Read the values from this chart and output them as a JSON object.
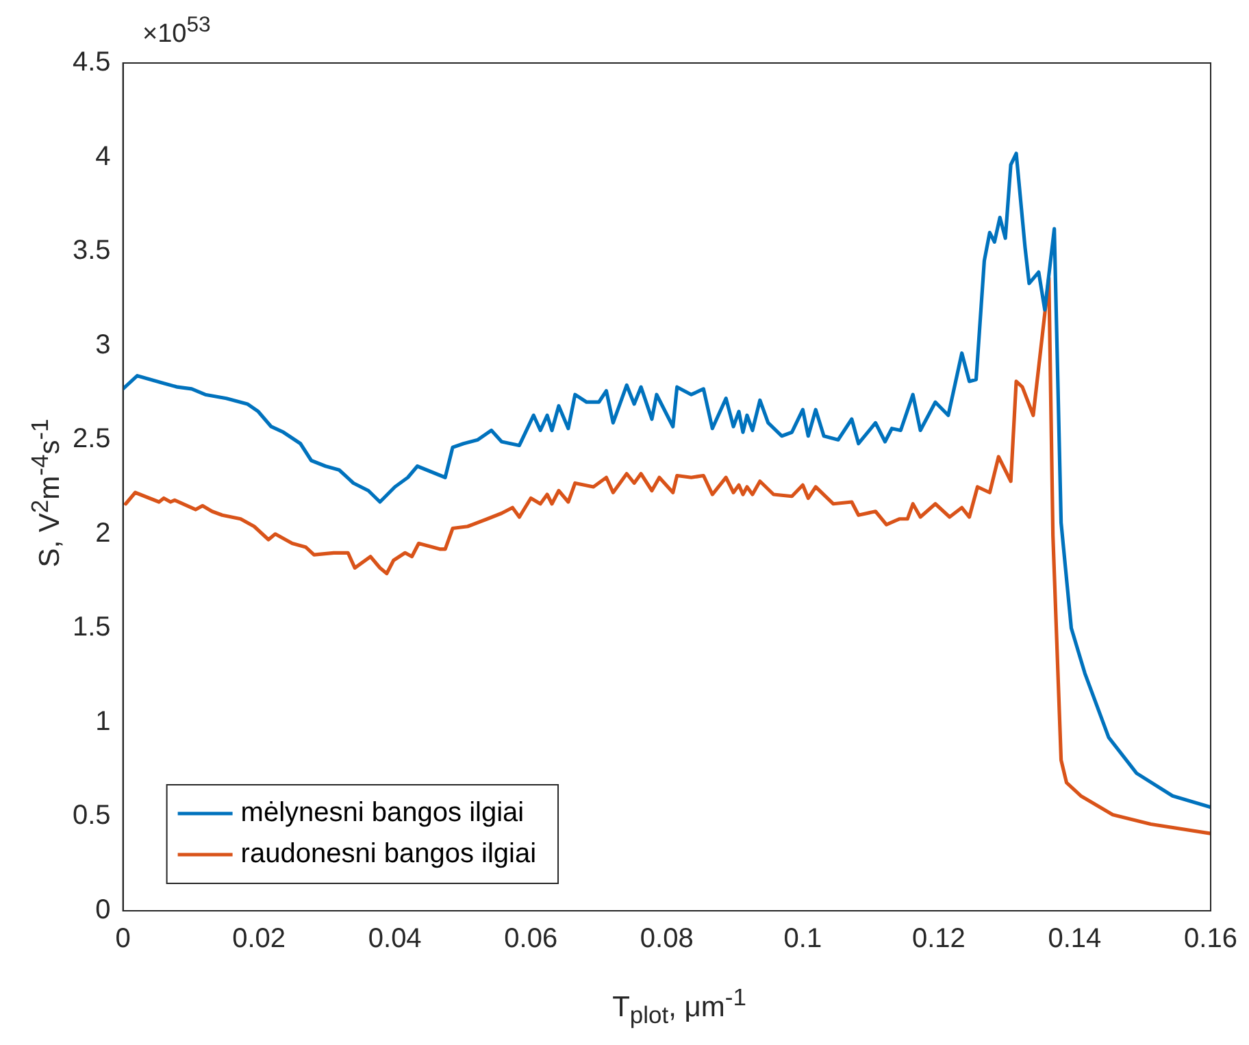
{
  "chart_data": {
    "type": "line",
    "xlabel": "T$_{plot}$, μm$^{-1}$",
    "ylabel": "S, V$^{2}$m$^{-4}$s$^{-1}$",
    "annotations": [
      "×10$^{53}$"
    ],
    "xlim": [
      0,
      0.16
    ],
    "xticks": [
      0,
      0.02,
      0.04,
      0.06,
      0.08,
      0.1,
      0.12,
      0.14,
      0.16
    ],
    "ylim": [
      0,
      4.5
    ],
    "yticks": [
      0,
      0.5,
      1,
      1.5,
      2,
      2.5,
      3,
      3.5,
      4,
      4.5
    ],
    "grid": false,
    "legend": "bottom left",
    "marker": "none",
    "line_style": "solid",
    "series": [
      {
        "name": "mėlynesni bangos ilgiai",
        "color": "#0072bd",
        "x": [
          0,
          0.0021,
          0.006,
          0.008,
          0.0101,
          0.0121,
          0.0152,
          0.0183,
          0.0199,
          0.0218,
          0.0236,
          0.0261,
          0.0277,
          0.0298,
          0.0318,
          0.0339,
          0.0361,
          0.0378,
          0.04,
          0.0419,
          0.0433,
          0.0474,
          0.0485,
          0.0501,
          0.0522,
          0.0542,
          0.0557,
          0.0583,
          0.0604,
          0.0614,
          0.0624,
          0.0631,
          0.0641,
          0.0655,
          0.0665,
          0.0682,
          0.07,
          0.0711,
          0.0721,
          0.0741,
          0.0752,
          0.0762,
          0.0778,
          0.0785,
          0.0809,
          0.0815,
          0.0836,
          0.0854,
          0.0867,
          0.0887,
          0.0898,
          0.0906,
          0.0912,
          0.0918,
          0.0926,
          0.0937,
          0.0949,
          0.0969,
          0.0984,
          0.1,
          0.1008,
          0.1019,
          0.1031,
          0.1052,
          0.1072,
          0.1082,
          0.1107,
          0.1121,
          0.1131,
          0.1144,
          0.1162,
          0.1173,
          0.1195,
          0.1214,
          0.1234,
          0.1245,
          0.1255,
          0.1267,
          0.1275,
          0.1282,
          0.129,
          0.1298,
          0.1306,
          0.1314,
          0.1327,
          0.1333,
          0.1347,
          0.1356,
          0.137,
          0.138,
          0.1395,
          0.1415,
          0.145,
          0.1491,
          0.1544,
          0.16
        ],
        "values": [
          2.77,
          2.84,
          2.8,
          2.78,
          2.77,
          2.74,
          2.72,
          2.69,
          2.65,
          2.57,
          2.54,
          2.48,
          2.39,
          2.36,
          2.34,
          2.27,
          2.23,
          2.17,
          2.25,
          2.3,
          2.36,
          2.3,
          2.46,
          2.48,
          2.5,
          2.55,
          2.49,
          2.47,
          2.63,
          2.55,
          2.63,
          2.55,
          2.68,
          2.56,
          2.74,
          2.7,
          2.7,
          2.76,
          2.59,
          2.79,
          2.69,
          2.78,
          2.61,
          2.74,
          2.57,
          2.78,
          2.74,
          2.77,
          2.56,
          2.72,
          2.57,
          2.65,
          2.54,
          2.63,
          2.55,
          2.71,
          2.59,
          2.52,
          2.54,
          2.66,
          2.52,
          2.66,
          2.52,
          2.5,
          2.61,
          2.48,
          2.59,
          2.49,
          2.56,
          2.55,
          2.74,
          2.55,
          2.7,
          2.63,
          2.96,
          2.81,
          2.82,
          3.45,
          3.6,
          3.55,
          3.68,
          3.57,
          3.96,
          4.02,
          3.52,
          3.33,
          3.39,
          3.19,
          3.62,
          2.06,
          1.5,
          1.26,
          0.92,
          0.73,
          0.61,
          0.55
        ]
      },
      {
        "name": "raudonesni bangos ilgiai",
        "color": "#d95319",
        "x": [
          0.0004,
          0.0018,
          0.0053,
          0.006,
          0.007,
          0.0076,
          0.0107,
          0.0117,
          0.0131,
          0.0146,
          0.0173,
          0.0193,
          0.0214,
          0.0224,
          0.0249,
          0.0269,
          0.0281,
          0.031,
          0.0331,
          0.0341,
          0.0364,
          0.0378,
          0.0388,
          0.0398,
          0.0415,
          0.0425,
          0.0435,
          0.0466,
          0.0474,
          0.0485,
          0.0507,
          0.0536,
          0.0557,
          0.0573,
          0.0583,
          0.06,
          0.0614,
          0.0624,
          0.0631,
          0.0641,
          0.0655,
          0.0665,
          0.0692,
          0.0711,
          0.0721,
          0.0741,
          0.0752,
          0.0762,
          0.0778,
          0.0789,
          0.0809,
          0.0815,
          0.0836,
          0.0854,
          0.0867,
          0.0887,
          0.0898,
          0.0906,
          0.0912,
          0.0918,
          0.0926,
          0.0937,
          0.0957,
          0.0984,
          0.1,
          0.1008,
          0.1019,
          0.1045,
          0.1072,
          0.1082,
          0.1107,
          0.1123,
          0.1142,
          0.1154,
          0.1162,
          0.1173,
          0.1195,
          0.1216,
          0.1234,
          0.1245,
          0.1257,
          0.1275,
          0.1288,
          0.1306,
          0.1314,
          0.1323,
          0.1339,
          0.1362,
          0.1368,
          0.138,
          0.1388,
          0.1409,
          0.1456,
          0.1512,
          0.16
        ],
        "values": [
          2.16,
          2.22,
          2.17,
          2.19,
          2.17,
          2.18,
          2.13,
          2.15,
          2.12,
          2.1,
          2.08,
          2.04,
          1.97,
          2.0,
          1.95,
          1.93,
          1.89,
          1.9,
          1.9,
          1.82,
          1.88,
          1.82,
          1.79,
          1.86,
          1.9,
          1.88,
          1.95,
          1.92,
          1.92,
          2.03,
          2.04,
          2.08,
          2.11,
          2.14,
          2.09,
          2.19,
          2.16,
          2.21,
          2.16,
          2.23,
          2.17,
          2.27,
          2.25,
          2.3,
          2.22,
          2.32,
          2.27,
          2.32,
          2.23,
          2.3,
          2.22,
          2.31,
          2.3,
          2.31,
          2.21,
          2.3,
          2.22,
          2.26,
          2.21,
          2.25,
          2.21,
          2.28,
          2.21,
          2.2,
          2.26,
          2.19,
          2.25,
          2.16,
          2.17,
          2.1,
          2.12,
          2.05,
          2.08,
          2.08,
          2.16,
          2.09,
          2.16,
          2.09,
          2.14,
          2.09,
          2.25,
          2.22,
          2.41,
          2.28,
          2.81,
          2.78,
          2.63,
          3.36,
          1.99,
          0.8,
          0.68,
          0.61,
          0.51,
          0.46,
          0.41
        ]
      }
    ]
  }
}
